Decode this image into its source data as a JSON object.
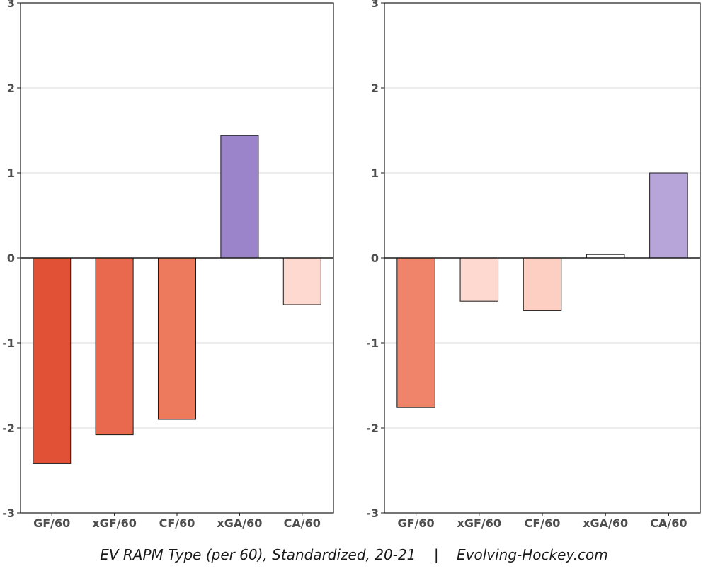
{
  "chart_data": [
    {
      "type": "bar",
      "categories": [
        "GF/60",
        "xGF/60",
        "CF/60",
        "xGA/60",
        "CA/60"
      ],
      "values": [
        -2.42,
        -2.08,
        -1.9,
        1.44,
        -0.55
      ],
      "colors": [
        "#e05136",
        "#e8694e",
        "#ee7a5e",
        "#9b84c9",
        "#fdd9cf"
      ],
      "ylim": [
        -3,
        3
      ],
      "yticks": [
        "-3",
        "-2",
        "-1",
        "0",
        "1",
        "2",
        "3"
      ],
      "grid": true,
      "title": "",
      "xlabel": "",
      "ylabel": ""
    },
    {
      "type": "bar",
      "categories": [
        "GF/60",
        "xGF/60",
        "CF/60",
        "xGA/60",
        "CA/60"
      ],
      "values": [
        -1.76,
        -0.51,
        -0.62,
        0.04,
        1.0
      ],
      "colors": [
        "#f0846b",
        "#fdd9cf",
        "#fdcfc3",
        "#ffffff",
        "#b7a5da"
      ],
      "ylim": [
        -3,
        3
      ],
      "yticks": [
        "-3",
        "-2",
        "-1",
        "0",
        "1",
        "2",
        "3"
      ],
      "grid": true,
      "title": "",
      "xlabel": "",
      "ylabel": ""
    }
  ],
  "caption": {
    "left": "EV RAPM Type (per 60), Standardized, 20-21",
    "separator": "|",
    "right": "Evolving-Hockey.com"
  }
}
